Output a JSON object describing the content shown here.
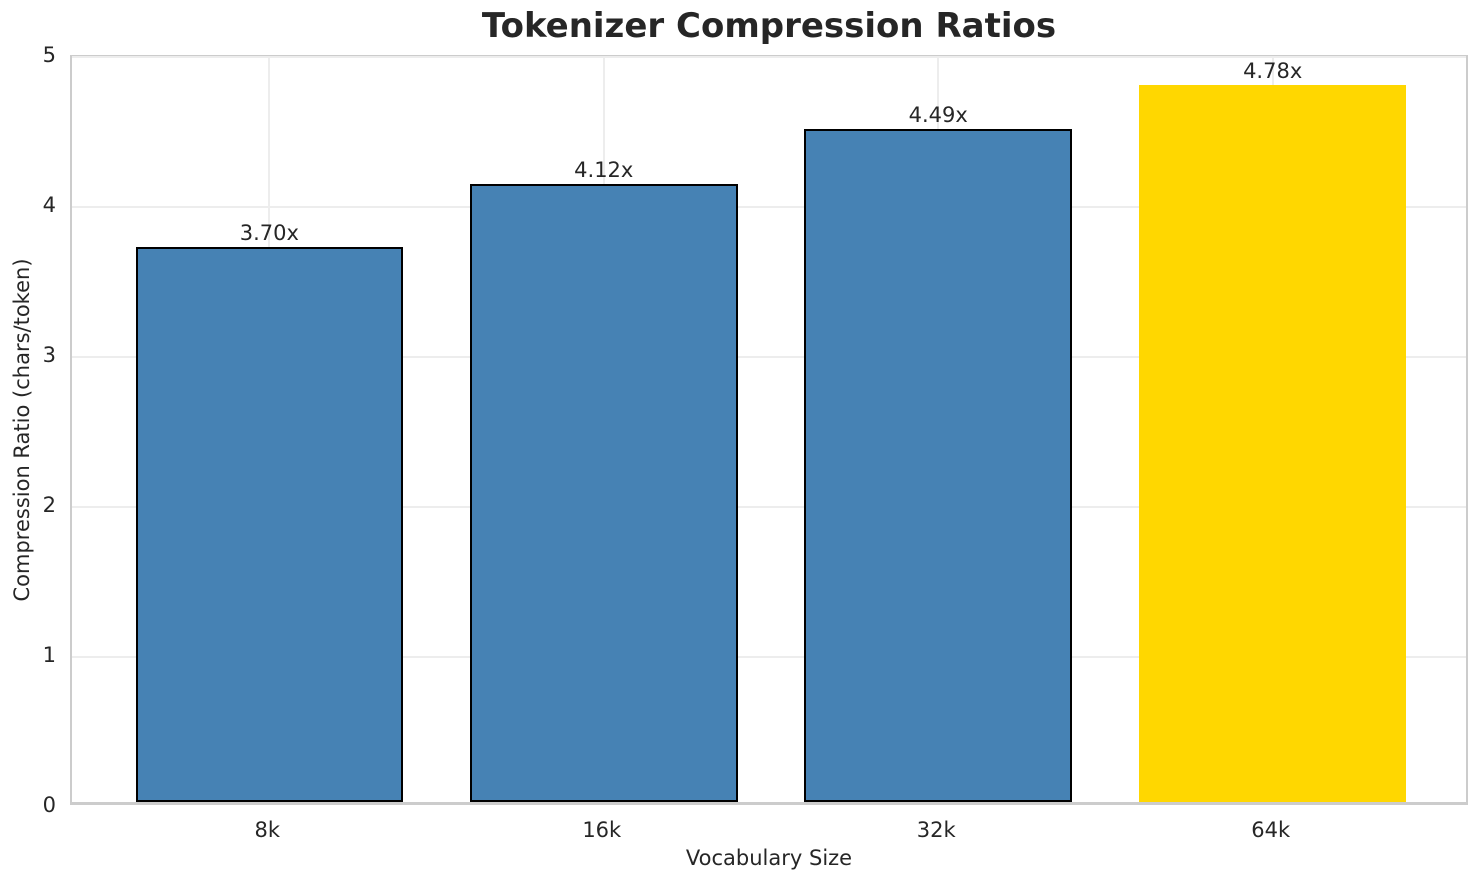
{
  "chart_data": {
    "type": "bar",
    "title": "Tokenizer Compression Ratios",
    "xlabel": "Vocabulary Size",
    "ylabel": "Compression Ratio (chars/token)",
    "categories": [
      "8k",
      "16k",
      "32k",
      "64k"
    ],
    "values": [
      3.7,
      4.12,
      4.49,
      4.78
    ],
    "bar_labels": [
      "3.70x",
      "4.12x",
      "4.49x",
      "4.78x"
    ],
    "ylim": [
      0,
      5
    ],
    "yticks": [
      0,
      1,
      2,
      3,
      4,
      5
    ],
    "xlim": [
      -0.59,
      3.59
    ],
    "bar_width_units": 0.8,
    "grid": true,
    "legend": "none",
    "highlight_index": 3,
    "bar_colors": [
      "#4682B4",
      "#4682B4",
      "#4682B4",
      "#FFD700"
    ],
    "bar_edge_colors": [
      "#000000",
      "#000000",
      "#000000",
      "none"
    ],
    "colors": {
      "bar_blue": "#4682B4",
      "bar_gold": "#FFD700",
      "bar_edge": "#000000",
      "gridline": "#ededed",
      "spine": "#cccccc",
      "text": "#262626",
      "background": "#ffffff"
    }
  }
}
